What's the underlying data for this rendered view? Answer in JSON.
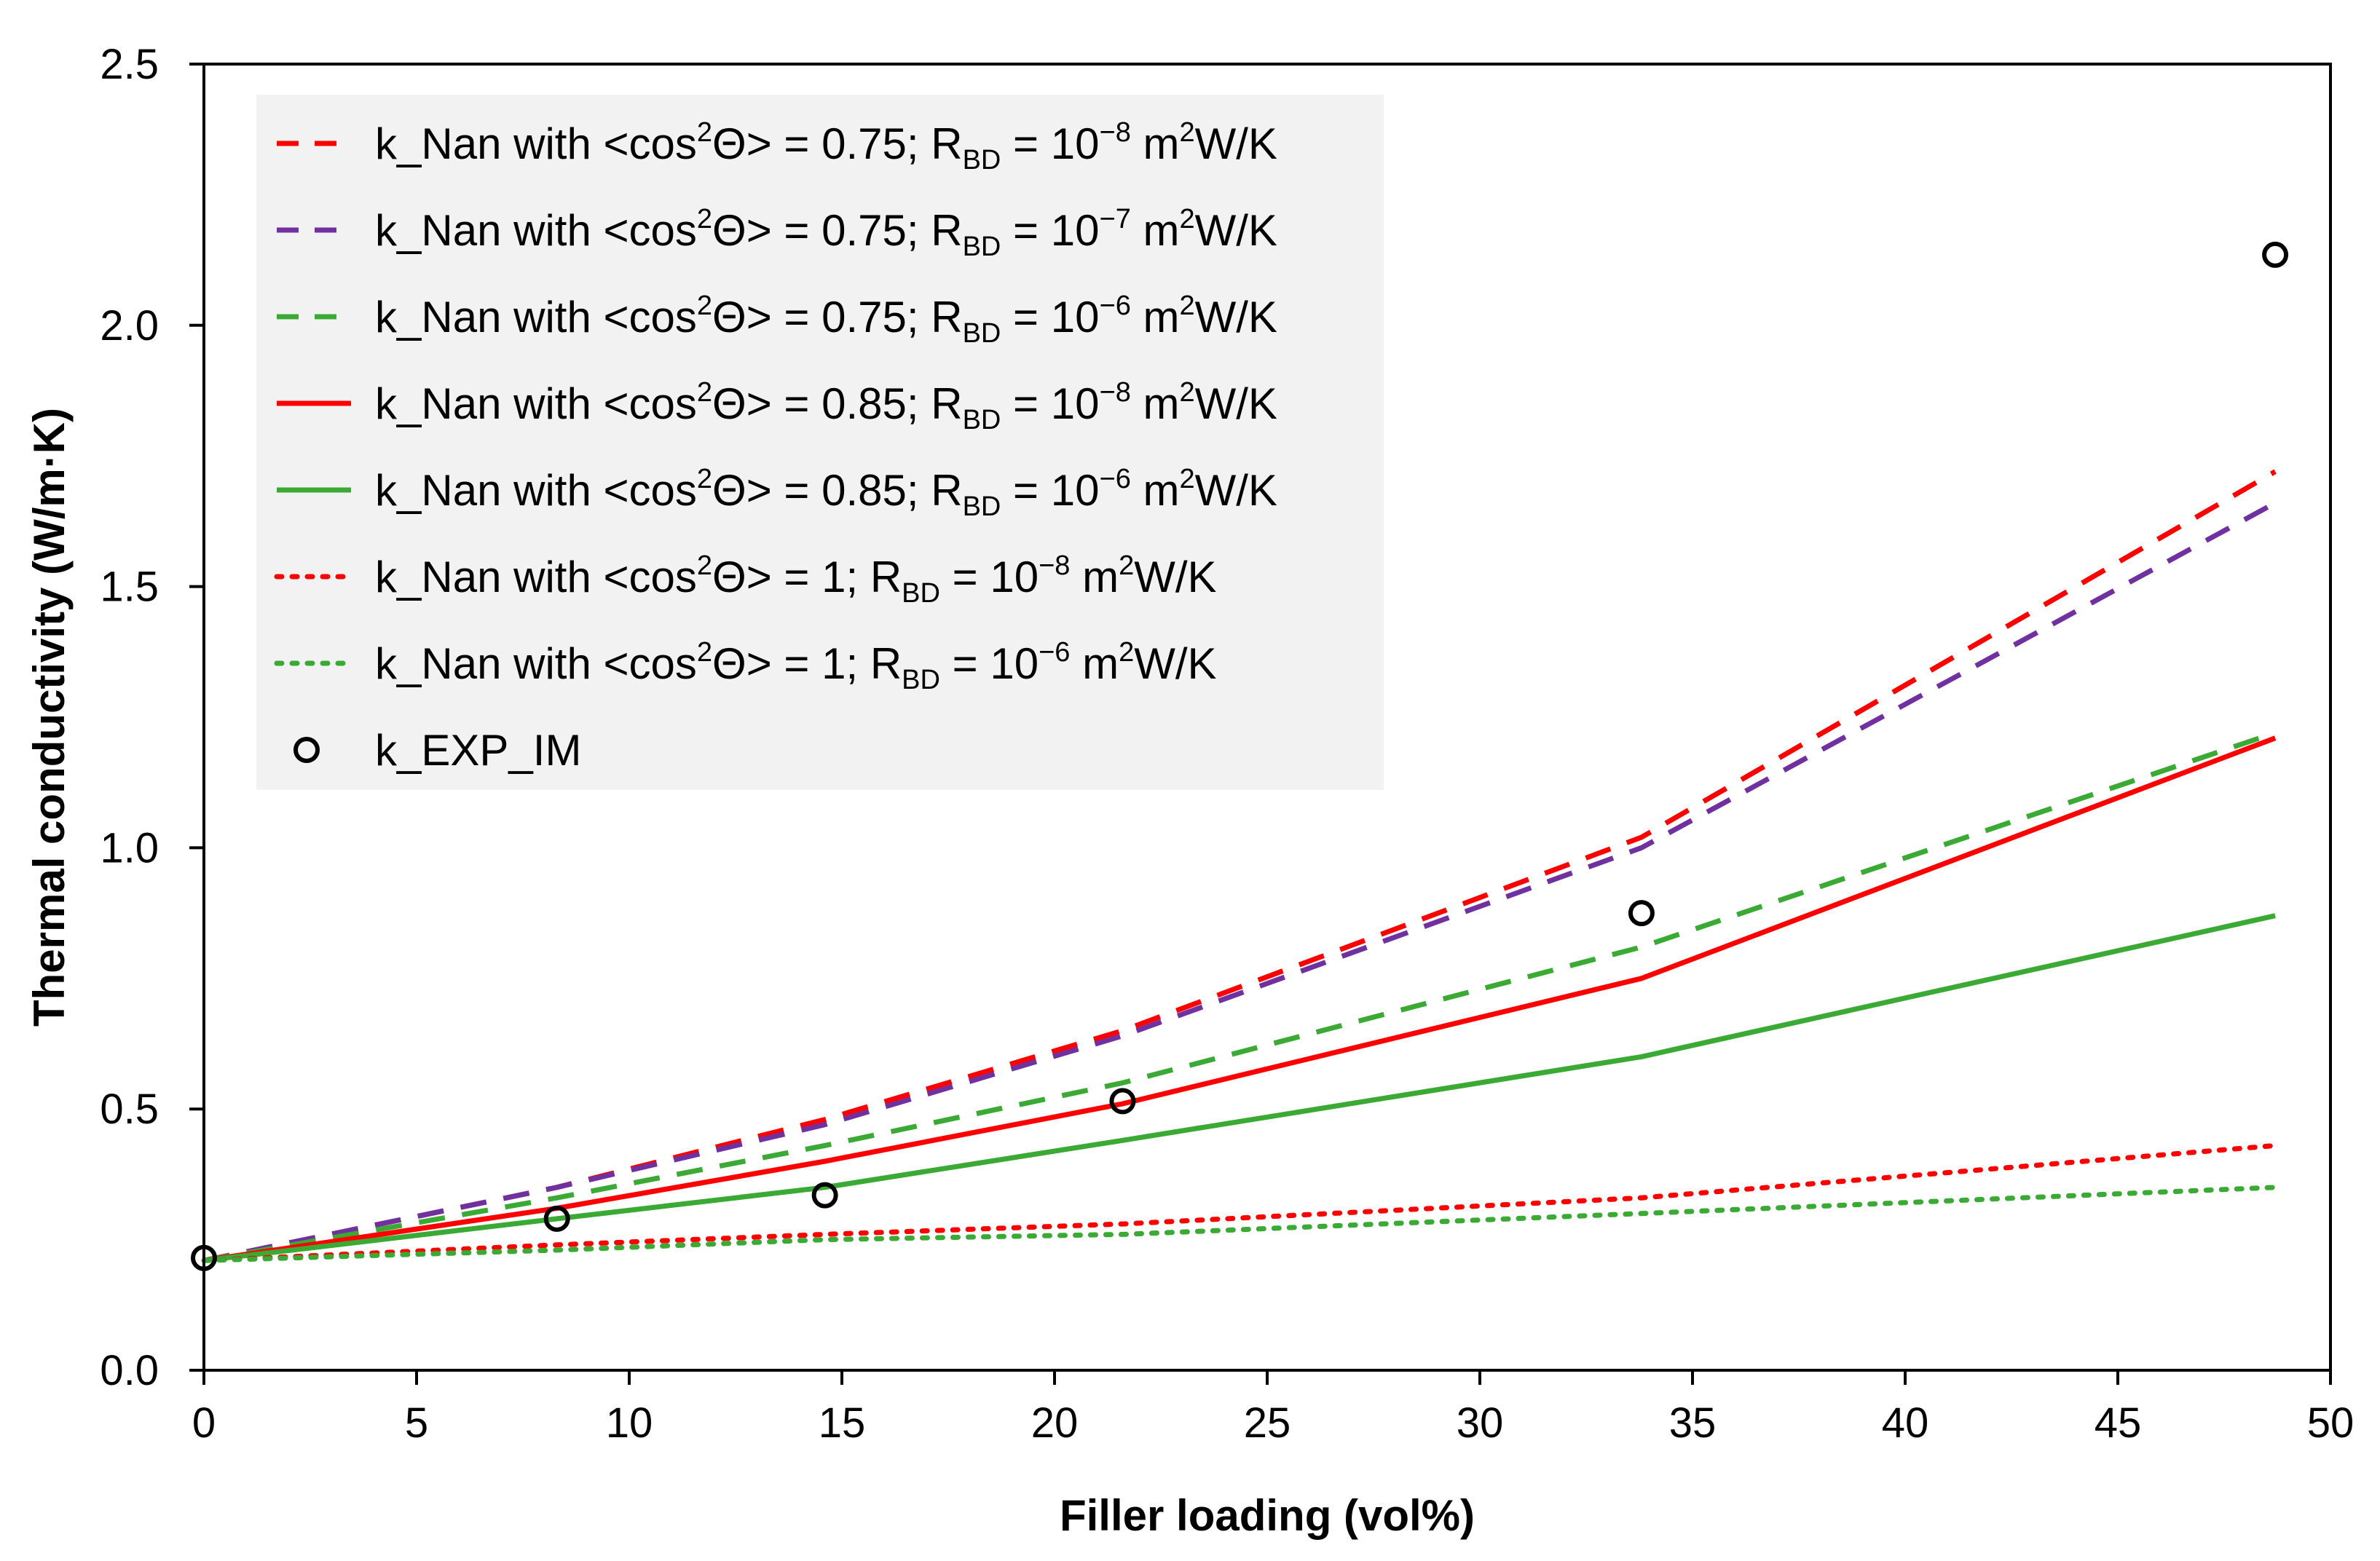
{
  "chart_data": {
    "type": "line",
    "title": "",
    "xlabel": "Filler loading (vol%)",
    "ylabel": "Thermal conductivity (W/m·K)",
    "xlim": [
      0,
      50
    ],
    "ylim": [
      0,
      2.5
    ],
    "xticks": [
      "0",
      "5",
      "10",
      "15",
      "20",
      "25",
      "30",
      "35",
      "40",
      "45",
      "50"
    ],
    "yticks": [
      "0.0",
      "0.5",
      "1.0",
      "1.5",
      "2.0",
      "2.5"
    ],
    "grid": false,
    "legend_position": "top-left",
    "x": [
      0,
      8.3,
      14.6,
      21.6,
      33.8,
      48.7
    ],
    "series": [
      {
        "name": "k_Nan with <cos²Θ> = 0.75; RBD = 10⁻⁸ m²W/K",
        "label": {
          "pre": "k_Nan with <cos",
          "mid": "Θ> = 0.75; R",
          "post": " = 10",
          "exp": "−8",
          "unit": " m",
          "tail": "W/K"
        },
        "color": "#ff0000",
        "style": "dashed",
        "values": [
          0.21,
          0.35,
          0.48,
          0.65,
          1.02,
          1.72
        ]
      },
      {
        "name": "k_Nan with <cos²Θ> = 0.75; RBD = 10⁻⁷ m²W/K",
        "label": {
          "pre": "k_Nan with <cos",
          "mid": "Θ> = 0.75; R",
          "post": " = 10",
          "exp": "−7",
          "unit": " m",
          "tail": "W/K"
        },
        "color": "#7030a0",
        "style": "dashed",
        "values": [
          0.21,
          0.35,
          0.47,
          0.64,
          1.0,
          1.66
        ]
      },
      {
        "name": "k_Nan with <cos²Θ> = 0.75; RBD = 10⁻⁶ m²W/K",
        "label": {
          "pre": "k_Nan with <cos",
          "mid": "Θ> = 0.75; R",
          "post": " = 10",
          "exp": "−6",
          "unit": " m",
          "tail": "W/K"
        },
        "color": "#3aaa35",
        "style": "dashed",
        "values": [
          0.21,
          0.33,
          0.43,
          0.55,
          0.81,
          1.22
        ]
      },
      {
        "name": "k_Nan with <cos²Θ> = 0.85; RBD = 10⁻⁸ m²W/K",
        "label": {
          "pre": "k_Nan with <cos",
          "mid": "Θ> = 0.85; R",
          "post": " = 10",
          "exp": "−8",
          "unit": " m",
          "tail": "W/K"
        },
        "color": "#ff0000",
        "style": "solid",
        "values": [
          0.21,
          0.31,
          0.4,
          0.51,
          0.75,
          1.21
        ]
      },
      {
        "name": "k_Nan with <cos²Θ> = 0.85; RBD = 10⁻⁶ m²W/K",
        "label": {
          "pre": "k_Nan with <cos",
          "mid": "Θ> = 0.85; R",
          "post": " = 10",
          "exp": "−6",
          "unit": " m",
          "tail": "W/K"
        },
        "color": "#3aaa35",
        "style": "solid",
        "values": [
          0.21,
          0.29,
          0.35,
          0.44,
          0.6,
          0.87
        ]
      },
      {
        "name": "k_Nan with <cos²Θ> = 1; RBD = 10⁻⁸ m²W/K",
        "label": {
          "pre": "k_Nan with <cos",
          "mid": "Θ> = 1; R",
          "post": " = 10",
          "exp": "−8",
          "unit": " m",
          "tail": "W/K"
        },
        "color": "#ff0000",
        "style": "dotted",
        "values": [
          0.21,
          0.24,
          0.26,
          0.28,
          0.33,
          0.43
        ]
      },
      {
        "name": "k_Nan with <cos²Θ> = 1; RBD = 10⁻⁶ m²W/K",
        "label": {
          "pre": "k_Nan with <cos",
          "mid": "Θ> = 1; R",
          "post": " = 10",
          "exp": "−6",
          "unit": " m",
          "tail": "W/K"
        },
        "color": "#3aaa35",
        "style": "dotted",
        "values": [
          0.21,
          0.23,
          0.25,
          0.26,
          0.3,
          0.35
        ]
      }
    ],
    "scatter": {
      "name": "k_EXP_IM",
      "label": "k_EXP_IM",
      "color": "#000000",
      "points": [
        [
          0,
          0.215
        ],
        [
          8.3,
          0.29
        ],
        [
          14.6,
          0.335
        ],
        [
          21.6,
          0.515
        ],
        [
          33.8,
          0.875
        ],
        [
          48.7,
          2.135
        ]
      ]
    },
    "colors": {
      "legend_background": "#f2f2f2",
      "axis": "#000000"
    }
  }
}
